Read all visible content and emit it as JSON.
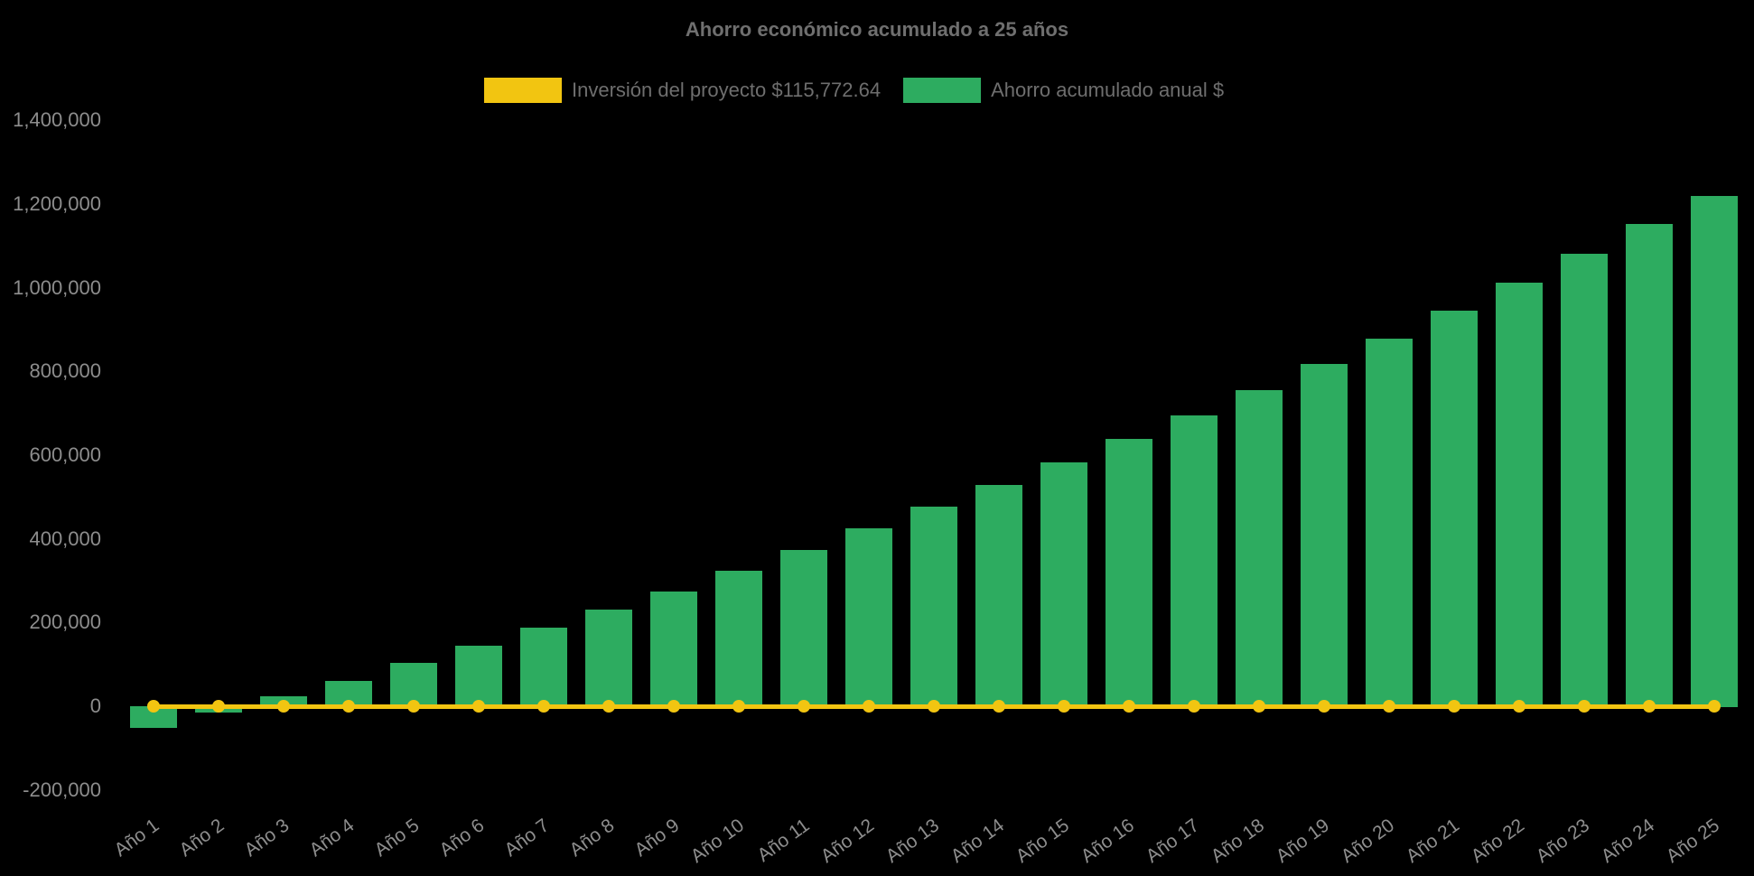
{
  "title": "Ahorro económico acumulado a 25 años",
  "legend": {
    "items": [
      {
        "label": "Inversión del proyecto $115,772.64",
        "color": "#f2c511",
        "series": "line"
      },
      {
        "label": "Ahorro acumulado anual $",
        "color": "#2dac60",
        "series": "bar"
      }
    ]
  },
  "chart_data": {
    "type": "bar",
    "title": "Ahorro económico acumulado a 25 años",
    "categories": [
      "Año 1",
      "Año 2",
      "Año 3",
      "Año 4",
      "Año 5",
      "Año 6",
      "Año 7",
      "Año 8",
      "Año 9",
      "Año 10",
      "Año 11",
      "Año 12",
      "Año 13",
      "Año 14",
      "Año 15",
      "Año 16",
      "Año 17",
      "Año 18",
      "Año 19",
      "Año 20",
      "Año 21",
      "Año 22",
      "Año 23",
      "Año 24",
      "Año 25"
    ],
    "series": [
      {
        "name": "Inversión del proyecto $115,772.64",
        "type": "line",
        "color": "#f2c511",
        "marker": "circle",
        "values": [
          0,
          0,
          0,
          0,
          0,
          0,
          0,
          0,
          0,
          0,
          0,
          0,
          0,
          0,
          0,
          0,
          0,
          0,
          0,
          0,
          0,
          0,
          0,
          0,
          0
        ]
      },
      {
        "name": "Ahorro acumulado anual $",
        "type": "bar",
        "color": "#2dac60",
        "values": [
          -52000,
          -16000,
          24000,
          61000,
          104000,
          145000,
          188000,
          230000,
          275000,
          324000,
          373000,
          424000,
          476000,
          528000,
          582000,
          638000,
          694000,
          755000,
          817000,
          878000,
          945000,
          1012000,
          1081000,
          1153000,
          1220000
        ]
      }
    ],
    "ylim": [
      -200000,
      1400000
    ],
    "ytick_step": 200000,
    "yticks": [
      {
        "value": 1400000,
        "label": "1,400,000"
      },
      {
        "value": 1200000,
        "label": "1,200,000"
      },
      {
        "value": 1000000,
        "label": "1,000,000"
      },
      {
        "value": 800000,
        "label": "800,000"
      },
      {
        "value": 600000,
        "label": "600,000"
      },
      {
        "value": 400000,
        "label": "400,000"
      },
      {
        "value": 200000,
        "label": "200,000"
      },
      {
        "value": 0,
        "label": "0"
      },
      {
        "value": -200000,
        "label": "-200,000"
      }
    ],
    "grid": false,
    "legend_position": "top",
    "x_label_rotation_deg": -36
  },
  "colors": {
    "background": "#000000",
    "bar": "#2dac60",
    "line": "#f2c511",
    "title_text": "#6f6f6f",
    "legend_text": "#6e6e6e",
    "tick_text": "#8d8d8d"
  }
}
